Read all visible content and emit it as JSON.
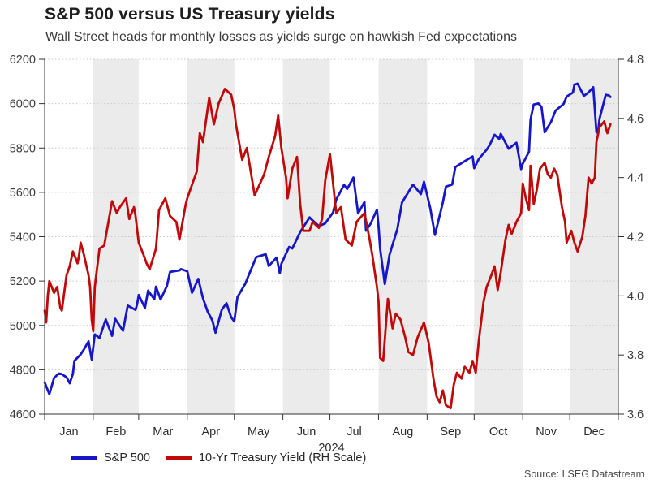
{
  "header": {
    "title": "S&P 500 versus US Treasury yields",
    "subtitle": "Wall Street heads for monthly losses as yields surge on hawkish Fed expectations"
  },
  "legend": [
    {
      "label": "S&P 500",
      "color": "#1717c8"
    },
    {
      "label": "10-Yr Treasury Yield (RH Scale)",
      "color": "#c00a0a"
    }
  ],
  "footer": {
    "source": "Source: LSEG Datastream"
  },
  "chart_data": {
    "type": "line",
    "title": "S&P 500 versus US Treasury yields",
    "x_axis": {
      "year_label": "2024",
      "months": [
        "Jan",
        "Feb",
        "Mar",
        "Apr",
        "May",
        "Jun",
        "Jul",
        "Aug",
        "Sep",
        "Oct",
        "Nov",
        "Dec"
      ],
      "month_boundaries_days": [
        0,
        31,
        60,
        91,
        121,
        152,
        182,
        213,
        244,
        274,
        305,
        335,
        366
      ],
      "days_in_year": 366
    },
    "left_axis": {
      "min": 4600,
      "max": 6200,
      "ticks": [
        6200,
        6000,
        5800,
        5600,
        5400,
        5200,
        5000,
        4800,
        4600
      ]
    },
    "right_axis": {
      "min": 3.6,
      "max": 4.8,
      "ticks": [
        4.8,
        4.6,
        4.4,
        4.2,
        4.0,
        3.8,
        3.6
      ],
      "tick_labels": [
        "4.8",
        "4.6",
        "4.4",
        "4.2",
        "4.0",
        "3.8",
        "3.6"
      ]
    },
    "grid": "horizontal-dotted",
    "legend_position": "bottom-left",
    "style": {
      "band_color": "#ebebeb",
      "grid_color": "#c8c8c8",
      "axis_color": "#333333",
      "tick_label_color": "#3d3d3d",
      "month_label_color": "#2b2b2b"
    },
    "series": [
      {
        "name": "S&P 500",
        "axis": "left",
        "color": "#1717c8",
        "points": [
          [
            0,
            4743
          ],
          [
            3,
            4690
          ],
          [
            6,
            4763
          ],
          [
            9,
            4783
          ],
          [
            11,
            4780
          ],
          [
            14,
            4766
          ],
          [
            16,
            4739
          ],
          [
            18,
            4781
          ],
          [
            19,
            4840
          ],
          [
            23,
            4869
          ],
          [
            25,
            4891
          ],
          [
            28,
            4928
          ],
          [
            30,
            4846
          ],
          [
            32,
            4959
          ],
          [
            35,
            4943
          ],
          [
            39,
            5027
          ],
          [
            43,
            4953
          ],
          [
            45,
            5030
          ],
          [
            50,
            4976
          ],
          [
            53,
            5089
          ],
          [
            58,
            5070
          ],
          [
            59,
            5096
          ],
          [
            60,
            5137
          ],
          [
            64,
            5079
          ],
          [
            66,
            5157
          ],
          [
            70,
            5118
          ],
          [
            71,
            5175
          ],
          [
            74,
            5117
          ],
          [
            78,
            5178
          ],
          [
            80,
            5241
          ],
          [
            86,
            5248
          ],
          [
            87,
            5254
          ],
          [
            91,
            5244
          ],
          [
            94,
            5147
          ],
          [
            98,
            5210
          ],
          [
            101,
            5123
          ],
          [
            104,
            5062
          ],
          [
            107,
            5022
          ],
          [
            109,
            4967
          ],
          [
            113,
            5071
          ],
          [
            116,
            5100
          ],
          [
            119,
            5036
          ],
          [
            121,
            5018
          ],
          [
            123,
            5128
          ],
          [
            128,
            5188
          ],
          [
            130,
            5223
          ],
          [
            135,
            5308
          ],
          [
            141,
            5321
          ],
          [
            143,
            5268
          ],
          [
            148,
            5306
          ],
          [
            150,
            5235
          ],
          [
            151,
            5277
          ],
          [
            156,
            5354
          ],
          [
            158,
            5347
          ],
          [
            163,
            5421
          ],
          [
            169,
            5487
          ],
          [
            171,
            5473
          ],
          [
            175,
            5448
          ],
          [
            179,
            5460
          ],
          [
            184,
            5509
          ],
          [
            186,
            5567
          ],
          [
            191,
            5634
          ],
          [
            193,
            5615
          ],
          [
            197,
            5667
          ],
          [
            200,
            5505
          ],
          [
            204,
            5556
          ],
          [
            205,
            5427
          ],
          [
            208,
            5459
          ],
          [
            212,
            5522
          ],
          [
            213,
            5446
          ],
          [
            214,
            5347
          ],
          [
            217,
            5186
          ],
          [
            220,
            5319
          ],
          [
            225,
            5434
          ],
          [
            228,
            5554
          ],
          [
            235,
            5635
          ],
          [
            240,
            5592
          ],
          [
            242,
            5648
          ],
          [
            246,
            5528
          ],
          [
            249,
            5408
          ],
          [
            254,
            5554
          ],
          [
            256,
            5626
          ],
          [
            260,
            5635
          ],
          [
            262,
            5714
          ],
          [
            269,
            5745
          ],
          [
            273,
            5762
          ],
          [
            274,
            5709
          ],
          [
            277,
            5751
          ],
          [
            282,
            5792
          ],
          [
            284,
            5815
          ],
          [
            287,
            5860
          ],
          [
            290,
            5841
          ],
          [
            291,
            5864
          ],
          [
            296,
            5797
          ],
          [
            301,
            5824
          ],
          [
            304,
            5705
          ],
          [
            305,
            5729
          ],
          [
            309,
            5783
          ],
          [
            310,
            5929
          ],
          [
            312,
            5996
          ],
          [
            315,
            6001
          ],
          [
            317,
            5985
          ],
          [
            319,
            5871
          ],
          [
            323,
            5917
          ],
          [
            326,
            5969
          ],
          [
            331,
            5998
          ],
          [
            333,
            6032
          ],
          [
            337,
            6050
          ],
          [
            338,
            6086
          ],
          [
            340,
            6090
          ],
          [
            344,
            6035
          ],
          [
            347,
            6051
          ],
          [
            350,
            6074
          ],
          [
            352,
            5872
          ],
          [
            353,
            5867
          ],
          [
            354,
            5931
          ],
          [
            358,
            6040
          ],
          [
            360,
            6037
          ],
          [
            361,
            6030
          ]
        ]
      },
      {
        "name": "10-Yr Treasury Yield (RH Scale)",
        "axis": "right",
        "color": "#c00a0a",
        "points": [
          [
            0,
            3.95
          ],
          [
            1,
            3.91
          ],
          [
            2,
            4.0
          ],
          [
            3,
            4.05
          ],
          [
            6,
            4.01
          ],
          [
            8,
            4.03
          ],
          [
            10,
            3.96
          ],
          [
            11,
            3.95
          ],
          [
            14,
            4.07
          ],
          [
            16,
            4.1
          ],
          [
            18,
            4.15
          ],
          [
            21,
            4.11
          ],
          [
            22,
            4.14
          ],
          [
            23,
            4.18
          ],
          [
            25,
            4.14
          ],
          [
            28,
            4.07
          ],
          [
            29,
            4.03
          ],
          [
            30,
            3.92
          ],
          [
            31,
            3.88
          ],
          [
            32,
            4.03
          ],
          [
            35,
            4.16
          ],
          [
            38,
            4.17
          ],
          [
            43,
            4.32
          ],
          [
            46,
            4.28
          ],
          [
            48,
            4.3
          ],
          [
            52,
            4.33
          ],
          [
            54,
            4.26
          ],
          [
            57,
            4.3
          ],
          [
            58,
            4.27
          ],
          [
            60,
            4.18
          ],
          [
            63,
            4.14
          ],
          [
            65,
            4.11
          ],
          [
            67,
            4.09
          ],
          [
            71,
            4.16
          ],
          [
            73,
            4.29
          ],
          [
            77,
            4.33
          ],
          [
            80,
            4.27
          ],
          [
            84,
            4.25
          ],
          [
            86,
            4.19
          ],
          [
            90,
            4.31
          ],
          [
            91,
            4.33
          ],
          [
            93,
            4.36
          ],
          [
            97,
            4.42
          ],
          [
            99,
            4.55
          ],
          [
            101,
            4.52
          ],
          [
            105,
            4.67
          ],
          [
            108,
            4.58
          ],
          [
            111,
            4.65
          ],
          [
            115,
            4.7
          ],
          [
            119,
            4.68
          ],
          [
            121,
            4.63
          ],
          [
            122,
            4.58
          ],
          [
            126,
            4.46
          ],
          [
            129,
            4.5
          ],
          [
            134,
            4.34
          ],
          [
            140,
            4.41
          ],
          [
            143,
            4.47
          ],
          [
            147,
            4.54
          ],
          [
            149,
            4.61
          ],
          [
            151,
            4.5
          ],
          [
            154,
            4.4
          ],
          [
            155,
            4.33
          ],
          [
            158,
            4.43
          ],
          [
            161,
            4.47
          ],
          [
            163,
            4.31
          ],
          [
            165,
            4.22
          ],
          [
            169,
            4.22
          ],
          [
            171,
            4.25
          ],
          [
            175,
            4.23
          ],
          [
            177,
            4.26
          ],
          [
            179,
            4.39
          ],
          [
            182,
            4.48
          ],
          [
            186,
            4.28
          ],
          [
            189,
            4.3
          ],
          [
            192,
            4.19
          ],
          [
            196,
            4.17
          ],
          [
            199,
            4.25
          ],
          [
            204,
            4.28
          ],
          [
            207,
            4.2
          ],
          [
            209,
            4.14
          ],
          [
            212,
            4.03
          ],
          [
            213,
            3.98
          ],
          [
            214,
            3.79
          ],
          [
            216,
            3.78
          ],
          [
            219,
            3.99
          ],
          [
            222,
            3.89
          ],
          [
            224,
            3.94
          ],
          [
            227,
            3.92
          ],
          [
            230,
            3.86
          ],
          [
            232,
            3.81
          ],
          [
            235,
            3.8
          ],
          [
            238,
            3.86
          ],
          [
            242,
            3.91
          ],
          [
            245,
            3.84
          ],
          [
            248,
            3.72
          ],
          [
            250,
            3.66
          ],
          [
            252,
            3.64
          ],
          [
            254,
            3.68
          ],
          [
            256,
            3.63
          ],
          [
            259,
            3.62
          ],
          [
            261,
            3.7
          ],
          [
            263,
            3.74
          ],
          [
            266,
            3.72
          ],
          [
            268,
            3.76
          ],
          [
            271,
            3.74
          ],
          [
            273,
            3.78
          ],
          [
            275,
            3.74
          ],
          [
            277,
            3.85
          ],
          [
            280,
            3.98
          ],
          [
            282,
            4.03
          ],
          [
            285,
            4.07
          ],
          [
            287,
            4.1
          ],
          [
            289,
            4.02
          ],
          [
            291,
            4.08
          ],
          [
            294,
            4.19
          ],
          [
            296,
            4.24
          ],
          [
            298,
            4.21
          ],
          [
            301,
            4.25
          ],
          [
            304,
            4.28
          ],
          [
            305,
            4.38
          ],
          [
            307,
            4.33
          ],
          [
            309,
            4.29
          ],
          [
            310,
            4.44
          ],
          [
            312,
            4.31
          ],
          [
            314,
            4.36
          ],
          [
            316,
            4.43
          ],
          [
            319,
            4.45
          ],
          [
            321,
            4.41
          ],
          [
            323,
            4.4
          ],
          [
            325,
            4.43
          ],
          [
            327,
            4.41
          ],
          [
            330,
            4.3
          ],
          [
            332,
            4.25
          ],
          [
            333,
            4.18
          ],
          [
            336,
            4.22
          ],
          [
            338,
            4.18
          ],
          [
            340,
            4.15
          ],
          [
            343,
            4.2
          ],
          [
            345,
            4.27
          ],
          [
            347,
            4.4
          ],
          [
            349,
            4.38
          ],
          [
            351,
            4.4
          ],
          [
            352,
            4.52
          ],
          [
            354,
            4.57
          ],
          [
            357,
            4.59
          ],
          [
            359,
            4.55
          ],
          [
            361,
            4.58
          ]
        ]
      }
    ]
  }
}
